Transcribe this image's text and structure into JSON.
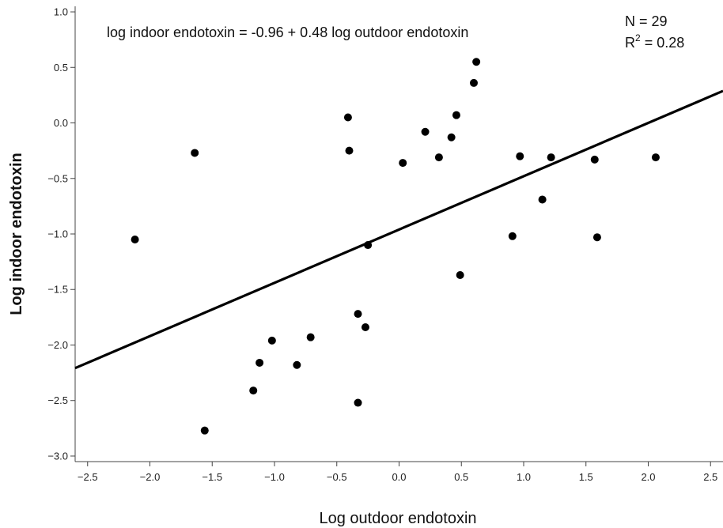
{
  "chart_data": {
    "type": "scatter",
    "title": "",
    "xlabel": "Log outdoor endotoxin",
    "ylabel": "Log indoor endotoxin",
    "xlim": [
      -2.6,
      2.6
    ],
    "ylim": [
      -3.05,
      1.05
    ],
    "xticks": [
      -2.5,
      -2.0,
      -1.5,
      -1.0,
      -0.5,
      0.0,
      0.5,
      1.0,
      1.5,
      2.0,
      2.5
    ],
    "yticks": [
      1.0,
      0.5,
      0.0,
      -0.5,
      -1.0,
      -1.5,
      -2.0,
      -2.5,
      -3.0
    ],
    "xtick_labels": [
      "−2.5",
      "−2.0",
      "−1.5",
      "−1.0",
      "−0.5",
      "0.0",
      "0.5",
      "1.0",
      "1.5",
      "2.0",
      "2.5"
    ],
    "ytick_labels": [
      "1.0",
      "0.5",
      "0.0",
      "−0.5",
      "−1.0",
      "−1.5",
      "−2.0",
      "−2.5",
      "−3.0"
    ],
    "grid": false,
    "points": [
      {
        "x": -2.12,
        "y": -1.05
      },
      {
        "x": -1.64,
        "y": -0.27
      },
      {
        "x": -1.56,
        "y": -2.77
      },
      {
        "x": -1.17,
        "y": -2.41
      },
      {
        "x": -1.12,
        "y": -2.16
      },
      {
        "x": -1.02,
        "y": -1.96
      },
      {
        "x": -0.82,
        "y": -2.18
      },
      {
        "x": -0.71,
        "y": -1.93
      },
      {
        "x": -0.41,
        "y": 0.05
      },
      {
        "x": -0.4,
        "y": -0.25
      },
      {
        "x": -0.33,
        "y": -1.72
      },
      {
        "x": -0.33,
        "y": -2.52
      },
      {
        "x": -0.27,
        "y": -1.84
      },
      {
        "x": -0.25,
        "y": -1.1
      },
      {
        "x": 0.03,
        "y": -0.36
      },
      {
        "x": 0.21,
        "y": -0.08
      },
      {
        "x": 0.32,
        "y": -0.31
      },
      {
        "x": 0.42,
        "y": -0.13
      },
      {
        "x": 0.46,
        "y": 0.07
      },
      {
        "x": 0.49,
        "y": -1.37
      },
      {
        "x": 0.6,
        "y": 0.36
      },
      {
        "x": 0.62,
        "y": 0.55
      },
      {
        "x": 0.91,
        "y": -1.02
      },
      {
        "x": 0.97,
        "y": -0.3
      },
      {
        "x": 1.15,
        "y": -0.69
      },
      {
        "x": 1.22,
        "y": -0.31
      },
      {
        "x": 1.57,
        "y": -0.33
      },
      {
        "x": 1.59,
        "y": -1.03
      },
      {
        "x": 2.06,
        "y": -0.31
      }
    ],
    "regression": {
      "intercept": -0.96,
      "slope": 0.48,
      "x_range": [
        -2.6,
        2.6
      ]
    },
    "annotations": {
      "equation": "log indoor endotoxin = -0.96 + 0.48 log outdoor endotoxin",
      "n_text": "N = 29",
      "r2_prefix": "R",
      "r2_exp": "2",
      "r2_value": " = 0.28"
    },
    "colors": {
      "points": "#000000",
      "line": "#000000",
      "axis": "#444444"
    }
  }
}
